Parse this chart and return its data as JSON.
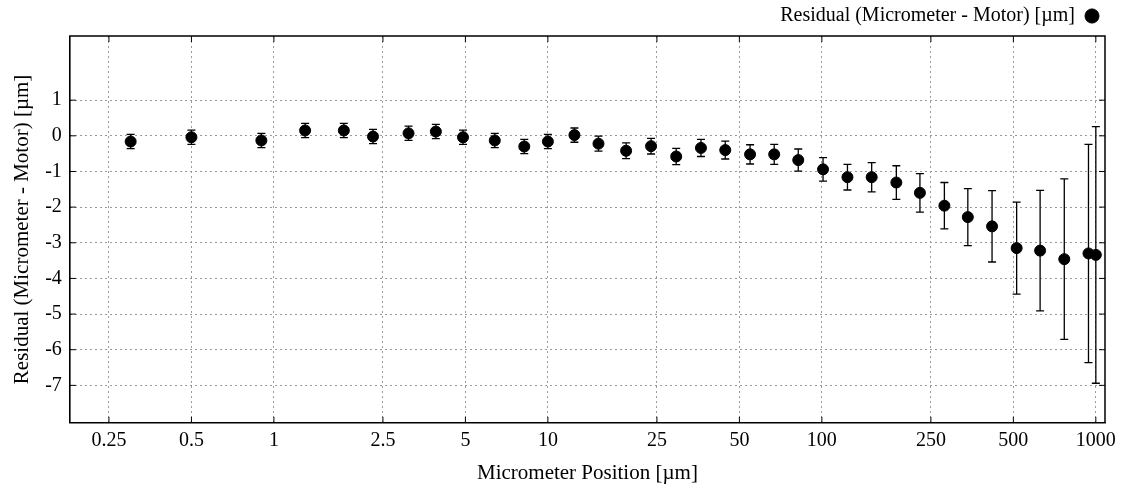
{
  "chart_data": {
    "type": "scatter",
    "xlabel": "Micrometer Position [µm]",
    "ylabel": "Residual (Micrometer - Motor) [µm]",
    "log": "x",
    "xlim": [
      0.18,
      1080
    ],
    "xticks": [
      0.25,
      0.5,
      1,
      2.5,
      5,
      10,
      25,
      50,
      100,
      250,
      500,
      1000
    ],
    "ylim": [
      -8.05,
      2.8
    ],
    "yticks": [
      1,
      0,
      -1,
      -2,
      -3,
      -4,
      -5,
      -6,
      -7
    ],
    "grid": true,
    "legend": "top right",
    "marker": "circle",
    "series": [
      {
        "name": "Residual (Micrometer - Motor) [µm]",
        "color": "#000000",
        "x": [
          0.3,
          0.5,
          0.9,
          1.3,
          1.8,
          2.3,
          3.1,
          3.9,
          4.9,
          6.4,
          8.2,
          10,
          12.5,
          15.3,
          19.3,
          23.8,
          29.4,
          36.2,
          44.4,
          54.7,
          67,
          82,
          101,
          124,
          152,
          187,
          228,
          280,
          341,
          418,
          514,
          626,
          767,
          940,
          1000
        ],
        "values": [
          -0.16,
          -0.04,
          -0.13,
          0.15,
          0.15,
          -0.02,
          0.07,
          0.12,
          -0.04,
          -0.13,
          -0.3,
          -0.16,
          0.02,
          -0.22,
          -0.42,
          -0.29,
          -0.58,
          -0.34,
          -0.4,
          -0.52,
          -0.52,
          -0.68,
          -0.94,
          -1.16,
          -1.16,
          -1.31,
          -1.6,
          -1.96,
          -2.28,
          -2.54,
          -3.15,
          -3.22,
          -3.46,
          -3.3,
          -3.34
        ],
        "errors": [
          0.2,
          0.2,
          0.2,
          0.2,
          0.2,
          0.2,
          0.2,
          0.2,
          0.2,
          0.2,
          0.2,
          0.2,
          0.2,
          0.21,
          0.22,
          0.22,
          0.23,
          0.24,
          0.25,
          0.27,
          0.28,
          0.31,
          0.33,
          0.36,
          0.41,
          0.47,
          0.54,
          0.65,
          0.8,
          1.0,
          1.29,
          1.69,
          2.25,
          3.06,
          3.6
        ]
      }
    ]
  }
}
